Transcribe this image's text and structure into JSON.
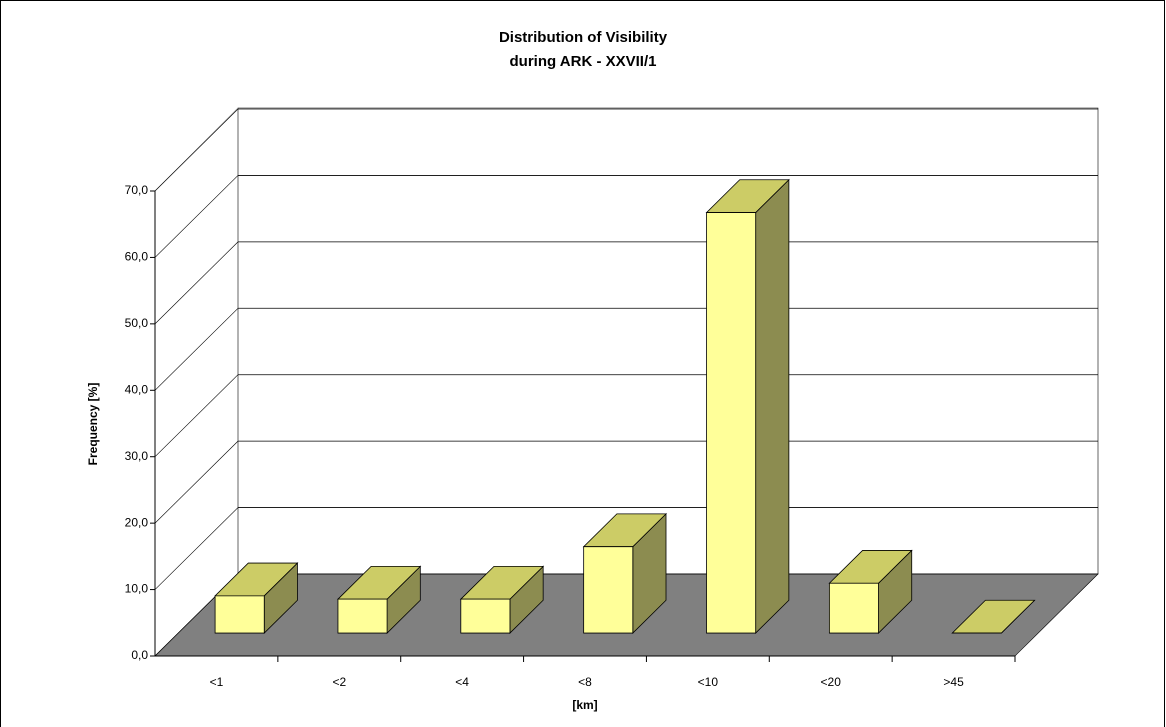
{
  "chart_data": {
    "type": "bar3d",
    "title": [
      "Distribution of Visibility",
      "during ARK - XXVII/1"
    ],
    "y_label": "Frequency [%]",
    "x_label": "[km]",
    "categories": [
      "<1",
      "<2",
      "<4",
      "<8",
      "<10",
      "<20",
      ">45"
    ],
    "values": [
      5.6,
      5.1,
      5.1,
      13.0,
      63.3,
      7.5,
      0
    ],
    "colors": {
      "front": "#ffff99",
      "top": "#cccc66",
      "side": "#8c8c50",
      "floor": "#808080"
    },
    "ylim": [
      0,
      70
    ],
    "yticks": [
      {
        "value": 0,
        "label": "0,0"
      },
      {
        "value": 10,
        "label": "10,0"
      },
      {
        "value": 20,
        "label": "20,0"
      },
      {
        "value": 30,
        "label": "30,0"
      },
      {
        "value": 40,
        "label": "40,0"
      },
      {
        "value": 50,
        "label": "50,0"
      },
      {
        "value": 60,
        "label": "60,0"
      },
      {
        "value": 70,
        "label": "70,0"
      }
    ],
    "grid": true
  }
}
